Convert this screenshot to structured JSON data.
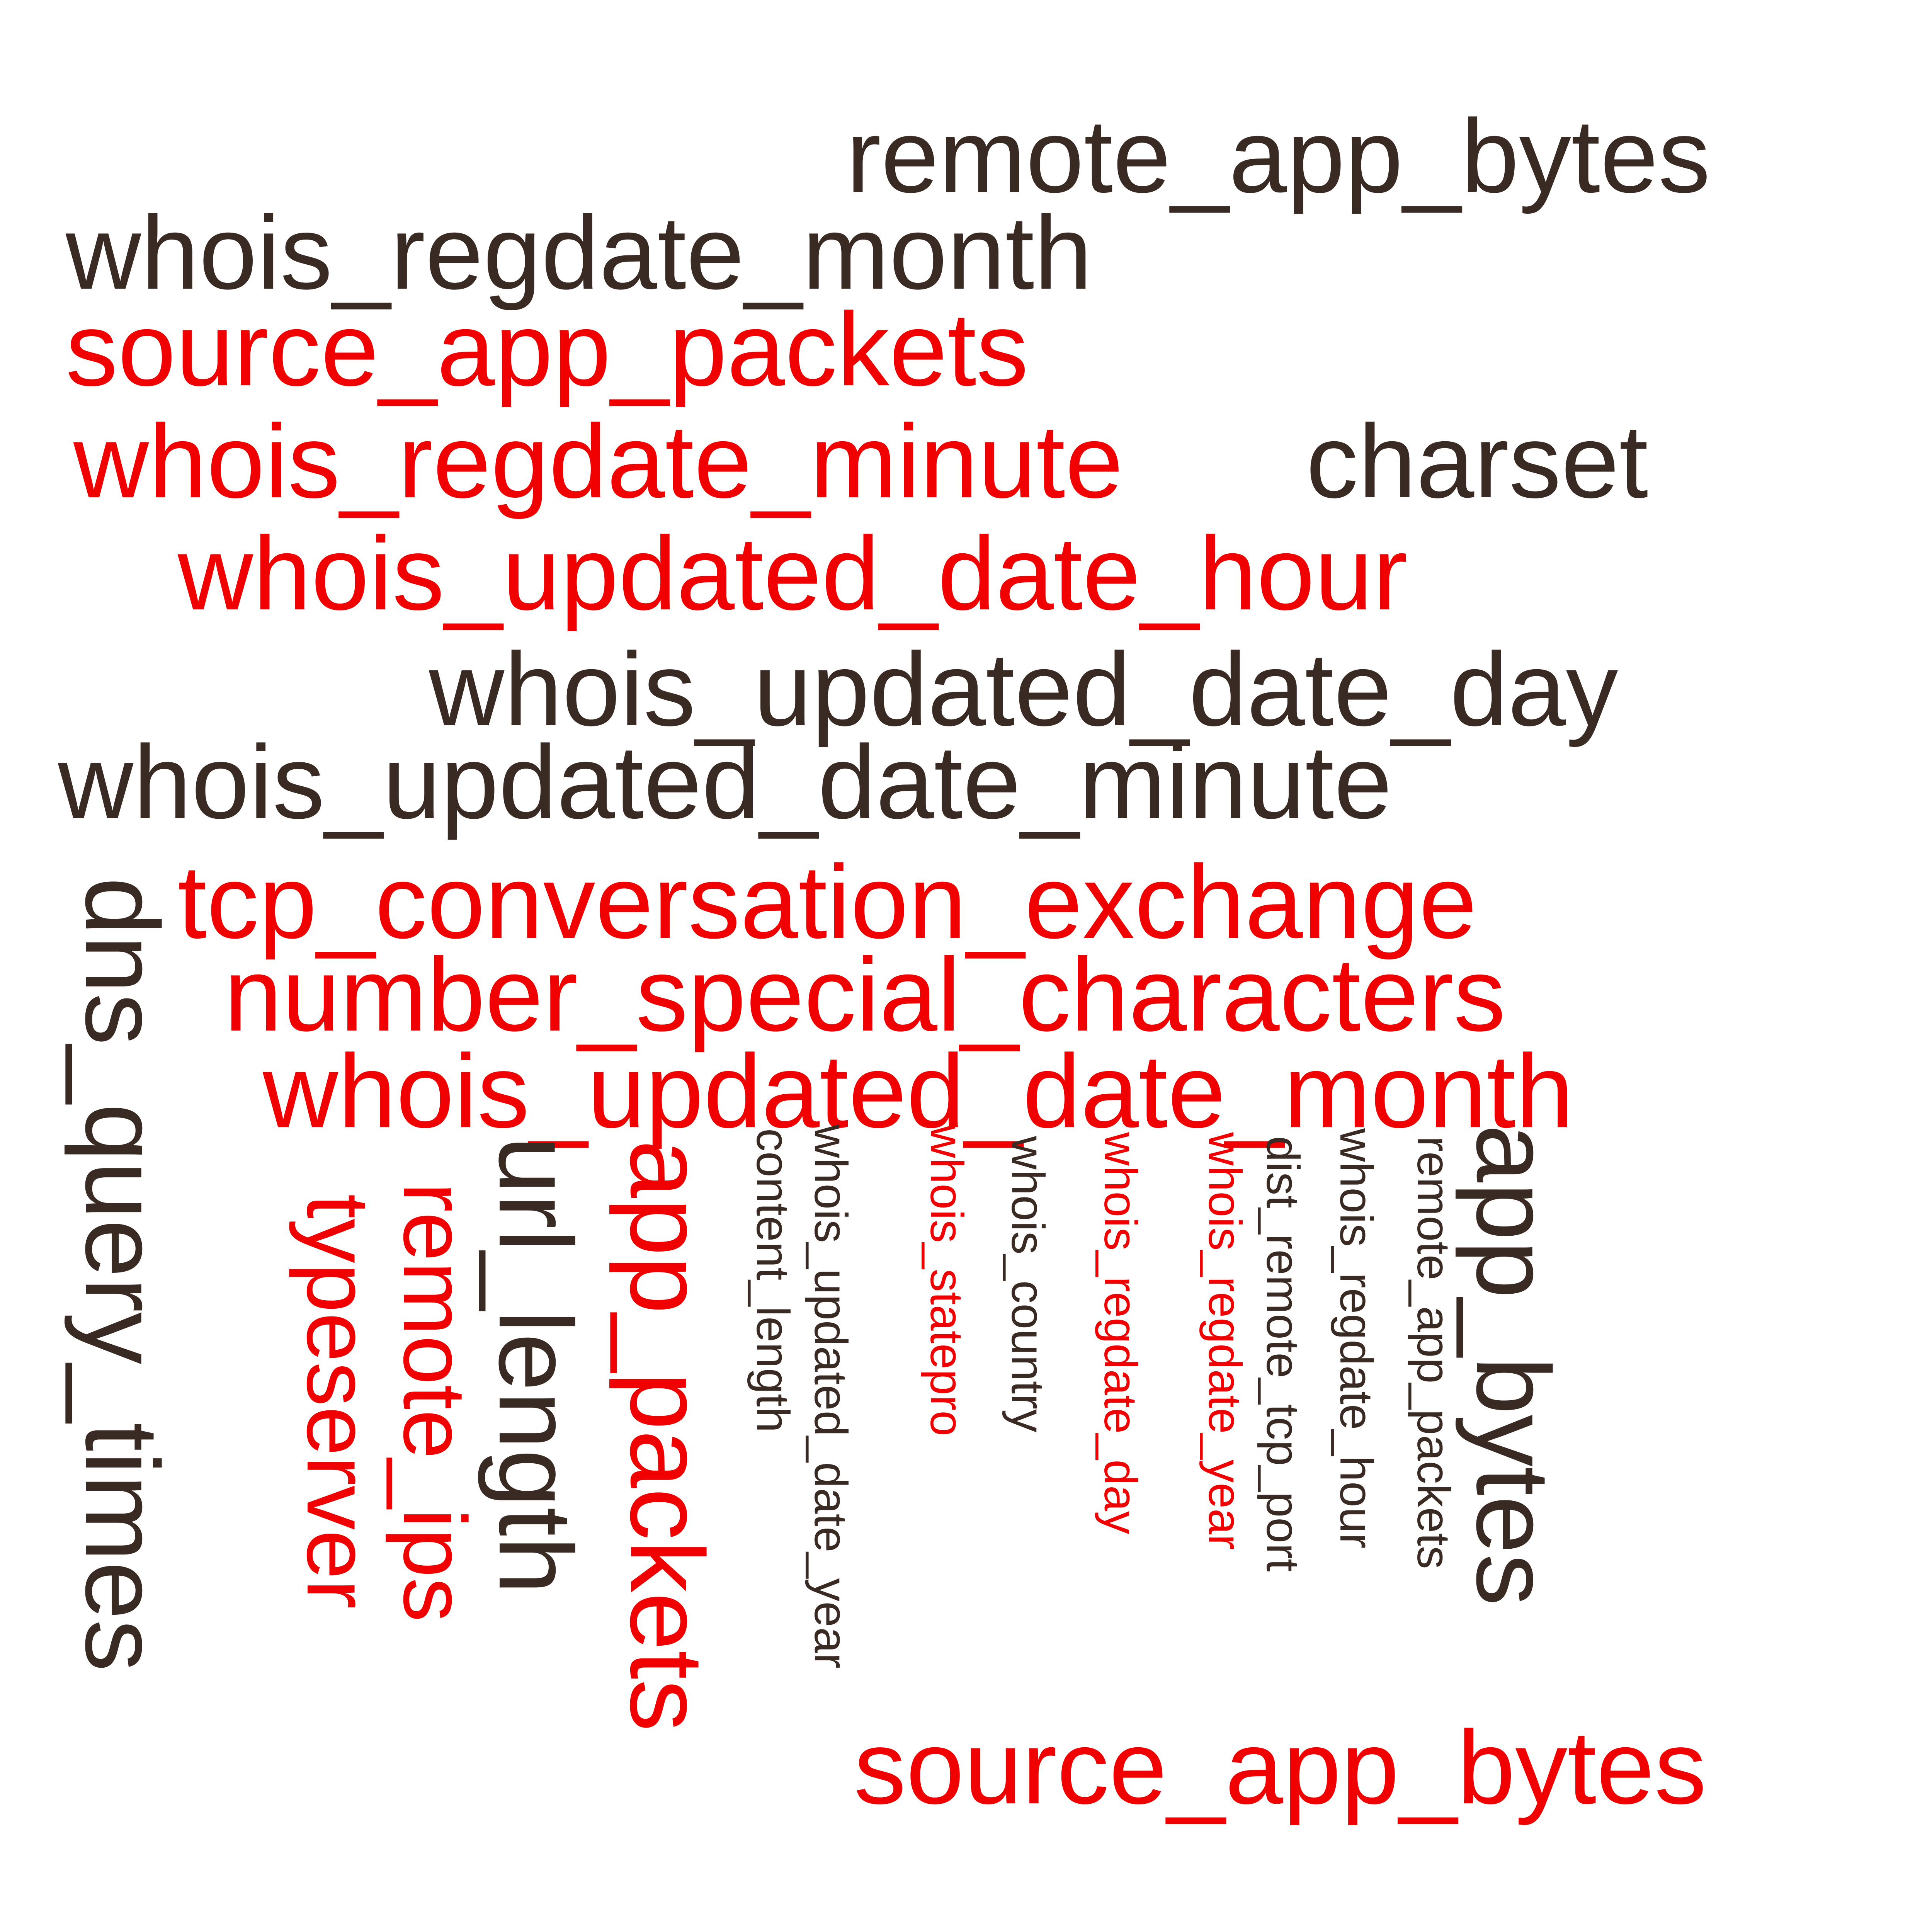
{
  "colors": {
    "dark": "#3a2a24",
    "red": "#f00000",
    "background": "#ffffff"
  },
  "words": {
    "remote_app_bytes": "remote_app_bytes",
    "whois_regdate_month": "whois_regdate_month",
    "source_app_packets": "source_app_packets",
    "whois_regdate_minute": "whois_regdate_minute",
    "charset": "charset",
    "whois_updated_date_hour": "whois_updated_date_hour",
    "whois_updated_date_day": "whois_updated_date_day",
    "whois_updated_date_minute": "whois_updated_date_minute",
    "tcp_conversation_exchange": "tcp_conversation_exchange",
    "number_special_characters": "number_special_characters",
    "whois_updated_date_month": "whois_updated_date_month",
    "dns_query_times": "dns_query_times",
    "typeserver": "typeserver",
    "remote_ips": "remote_ips",
    "url_length": "url_length",
    "app_packets": "app_packets",
    "content_length": "content_length",
    "whois_updated_date_year": "whois_updated_date_year",
    "whois_statepro": "whois_statepro",
    "whois_country": "whois_country",
    "whois_regdate_day": "whois_regdate_day",
    "whois_regdate_year": "whois_regdate_year",
    "dist_remote_tcp_port": "dist_remote_tcp_port",
    "whois_regdate_hour": "whois_regdate_hour",
    "remote_app_packets": "remote_app_packets",
    "app_bytes": "app_bytes",
    "source_app_bytes": "source_app_bytes"
  }
}
